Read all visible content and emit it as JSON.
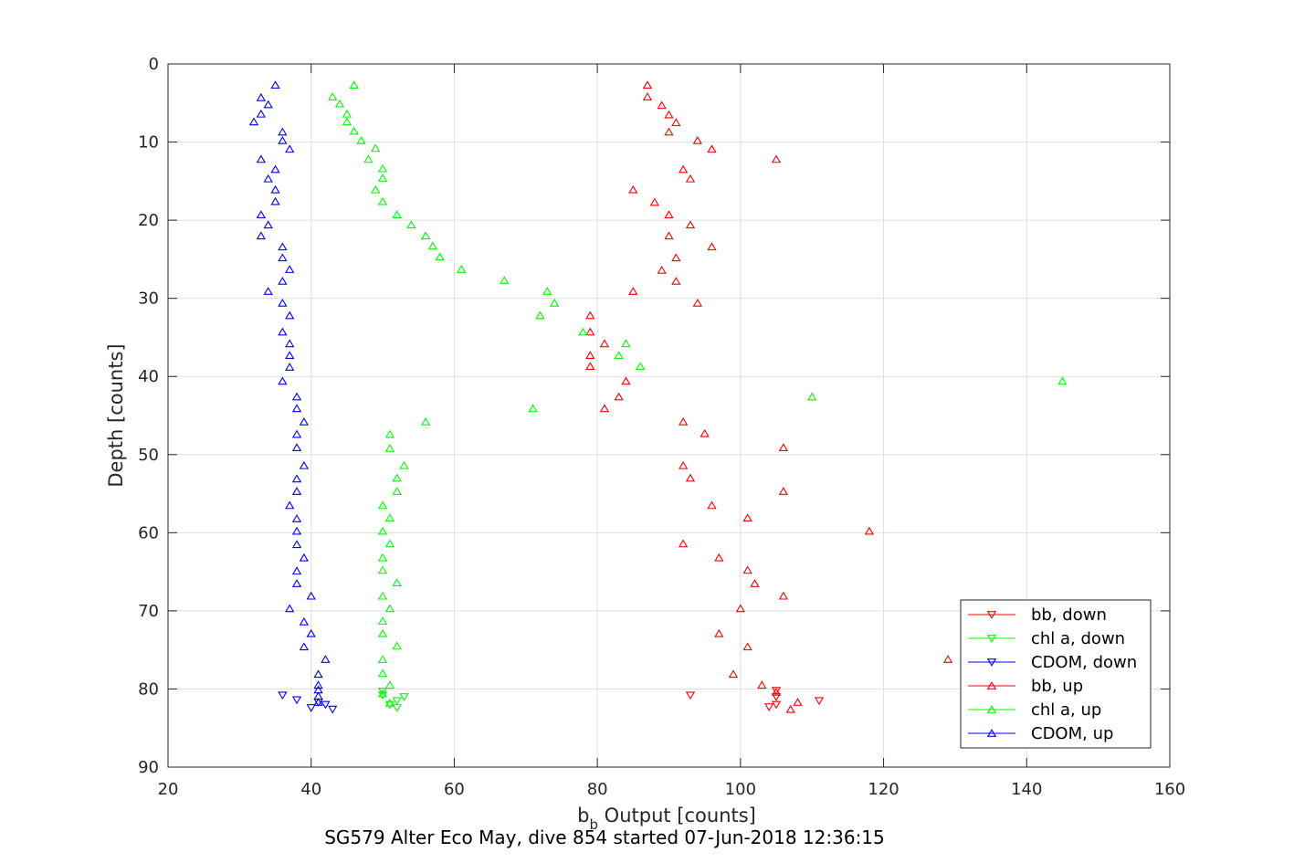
{
  "chart_data": {
    "type": "scatter",
    "title": "SG579 Alter Eco May, dive 854 started 07-Jun-2018 12:36:15",
    "xlabel_main": "b",
    "xlabel_sub": "b",
    "xlabel_rest": " Output [counts]",
    "ylabel": "Depth [counts]",
    "xlim": [
      20,
      160
    ],
    "ylim": [
      0,
      90
    ],
    "y_reversed": true,
    "grid": true,
    "legend_position": "bottom-right",
    "xticks": [
      "20",
      "40",
      "60",
      "80",
      "100",
      "120",
      "140",
      "160"
    ],
    "yticks": [
      "0",
      "10",
      "20",
      "30",
      "40",
      "50",
      "60",
      "70",
      "80",
      "90"
    ],
    "xtick_values": [
      20,
      40,
      60,
      80,
      100,
      120,
      140,
      160
    ],
    "ytick_values": [
      0,
      10,
      20,
      30,
      40,
      50,
      60,
      70,
      80,
      90
    ],
    "series": [
      {
        "name": "bb, down",
        "color": "#ff0000",
        "marker": "triangle-down",
        "points": [
          [
            93,
            80.8
          ],
          [
            105,
            80.2
          ],
          [
            105,
            81.0
          ],
          [
            111,
            81.5
          ],
          [
            104,
            82.3
          ],
          [
            105,
            82.0
          ]
        ]
      },
      {
        "name": "chl a, down",
        "color": "#00ff00",
        "marker": "triangle-down",
        "points": [
          [
            50,
            80.3
          ],
          [
            50,
            80.8
          ],
          [
            53,
            81.0
          ],
          [
            52,
            81.5
          ],
          [
            51,
            82.0
          ],
          [
            52,
            82.4
          ]
        ]
      },
      {
        "name": "CDOM, down",
        "color": "#0000ff",
        "marker": "triangle-down",
        "points": [
          [
            36,
            80.8
          ],
          [
            38,
            81.4
          ],
          [
            41,
            81.7
          ],
          [
            42,
            82.0
          ],
          [
            40,
            82.4
          ],
          [
            43,
            82.6
          ]
        ]
      },
      {
        "name": "bb, up",
        "color": "#ff0000",
        "marker": "triangle-up",
        "points": [
          [
            87,
            2.7
          ],
          [
            87,
            4.2
          ],
          [
            89,
            5.3
          ],
          [
            90,
            6.5
          ],
          [
            91,
            7.5
          ],
          [
            90,
            8.7
          ],
          [
            94,
            9.8
          ],
          [
            96,
            10.9
          ],
          [
            105,
            12.2
          ],
          [
            92,
            13.5
          ],
          [
            93,
            14.7
          ],
          [
            85,
            16.1
          ],
          [
            88,
            17.7
          ],
          [
            90,
            19.3
          ],
          [
            93,
            20.6
          ],
          [
            90,
            22.0
          ],
          [
            96,
            23.4
          ],
          [
            91,
            24.8
          ],
          [
            89,
            26.4
          ],
          [
            91,
            27.8
          ],
          [
            85,
            29.1
          ],
          [
            94,
            30.6
          ],
          [
            79,
            32.2
          ],
          [
            79,
            34.3
          ],
          [
            81,
            35.8
          ],
          [
            79,
            37.3
          ],
          [
            79,
            38.7
          ],
          [
            84,
            40.6
          ],
          [
            83,
            42.6
          ],
          [
            81,
            44.1
          ],
          [
            92,
            45.8
          ],
          [
            95,
            47.3
          ],
          [
            106,
            49.1
          ],
          [
            92,
            51.4
          ],
          [
            93,
            53.0
          ],
          [
            106,
            54.7
          ],
          [
            96,
            56.5
          ],
          [
            101,
            58.1
          ],
          [
            118,
            59.8
          ],
          [
            92,
            61.4
          ],
          [
            97,
            63.2
          ],
          [
            101,
            64.8
          ],
          [
            102,
            66.5
          ],
          [
            106,
            68.1
          ],
          [
            100,
            69.7
          ],
          [
            97,
            72.9
          ],
          [
            101,
            74.6
          ],
          [
            129,
            76.2
          ],
          [
            99,
            78.1
          ],
          [
            103,
            79.5
          ],
          [
            105,
            80.4
          ],
          [
            108,
            81.7
          ],
          [
            107,
            82.6
          ]
        ]
      },
      {
        "name": "chl a, up",
        "color": "#00ff00",
        "marker": "triangle-up",
        "points": [
          [
            46,
            2.7
          ],
          [
            43,
            4.2
          ],
          [
            44,
            5.1
          ],
          [
            45,
            6.4
          ],
          [
            45,
            7.4
          ],
          [
            46,
            8.6
          ],
          [
            47,
            9.8
          ],
          [
            49,
            10.8
          ],
          [
            48,
            12.2
          ],
          [
            50,
            13.4
          ],
          [
            50,
            14.6
          ],
          [
            49,
            16.1
          ],
          [
            50,
            17.6
          ],
          [
            52,
            19.3
          ],
          [
            54,
            20.6
          ],
          [
            56,
            22.0
          ],
          [
            57,
            23.3
          ],
          [
            58,
            24.7
          ],
          [
            61,
            26.3
          ],
          [
            67,
            27.7
          ],
          [
            73,
            29.1
          ],
          [
            74,
            30.6
          ],
          [
            72,
            32.2
          ],
          [
            78,
            34.3
          ],
          [
            84,
            35.8
          ],
          [
            83,
            37.3
          ],
          [
            86,
            38.7
          ],
          [
            145,
            40.6
          ],
          [
            110,
            42.6
          ],
          [
            71,
            44.1
          ],
          [
            56,
            45.8
          ],
          [
            51,
            47.4
          ],
          [
            51,
            49.2
          ],
          [
            53,
            51.4
          ],
          [
            52,
            53.0
          ],
          [
            52,
            54.7
          ],
          [
            50,
            56.5
          ],
          [
            51,
            58.1
          ],
          [
            50,
            59.8
          ],
          [
            51,
            61.4
          ],
          [
            50,
            63.2
          ],
          [
            50,
            64.8
          ],
          [
            52,
            66.4
          ],
          [
            50,
            68.1
          ],
          [
            51,
            69.7
          ],
          [
            50,
            71.3
          ],
          [
            50,
            72.9
          ],
          [
            52,
            74.5
          ],
          [
            50,
            76.2
          ],
          [
            50,
            78.0
          ],
          [
            51,
            79.5
          ],
          [
            50,
            80.6
          ],
          [
            51,
            81.8
          ]
        ]
      },
      {
        "name": "CDOM, up",
        "color": "#0000ff",
        "marker": "triangle-up",
        "points": [
          [
            35,
            2.7
          ],
          [
            33,
            4.3
          ],
          [
            34,
            5.2
          ],
          [
            33,
            6.4
          ],
          [
            32,
            7.4
          ],
          [
            36,
            8.7
          ],
          [
            36,
            9.8
          ],
          [
            37,
            10.9
          ],
          [
            33,
            12.2
          ],
          [
            35,
            13.5
          ],
          [
            34,
            14.7
          ],
          [
            35,
            16.1
          ],
          [
            35,
            17.6
          ],
          [
            33,
            19.3
          ],
          [
            34,
            20.6
          ],
          [
            33,
            22.0
          ],
          [
            36,
            23.4
          ],
          [
            36,
            24.8
          ],
          [
            37,
            26.3
          ],
          [
            36,
            27.8
          ],
          [
            34,
            29.1
          ],
          [
            36,
            30.6
          ],
          [
            37,
            32.2
          ],
          [
            36,
            34.3
          ],
          [
            37,
            35.8
          ],
          [
            37,
            37.3
          ],
          [
            37,
            38.8
          ],
          [
            36,
            40.6
          ],
          [
            38,
            42.6
          ],
          [
            38,
            44.1
          ],
          [
            39,
            45.8
          ],
          [
            38,
            47.4
          ],
          [
            38,
            49.1
          ],
          [
            39,
            51.4
          ],
          [
            38,
            53.1
          ],
          [
            38,
            54.7
          ],
          [
            37,
            56.5
          ],
          [
            38,
            58.2
          ],
          [
            38,
            59.8
          ],
          [
            38,
            61.5
          ],
          [
            39,
            63.2
          ],
          [
            38,
            64.9
          ],
          [
            38,
            66.5
          ],
          [
            40,
            68.1
          ],
          [
            37,
            69.7
          ],
          [
            39,
            71.4
          ],
          [
            40,
            72.9
          ],
          [
            39,
            74.6
          ],
          [
            42,
            76.2
          ],
          [
            41,
            78.1
          ],
          [
            41,
            79.5
          ],
          [
            41,
            80.1
          ],
          [
            41,
            80.9
          ],
          [
            41,
            81.7
          ]
        ]
      }
    ]
  }
}
